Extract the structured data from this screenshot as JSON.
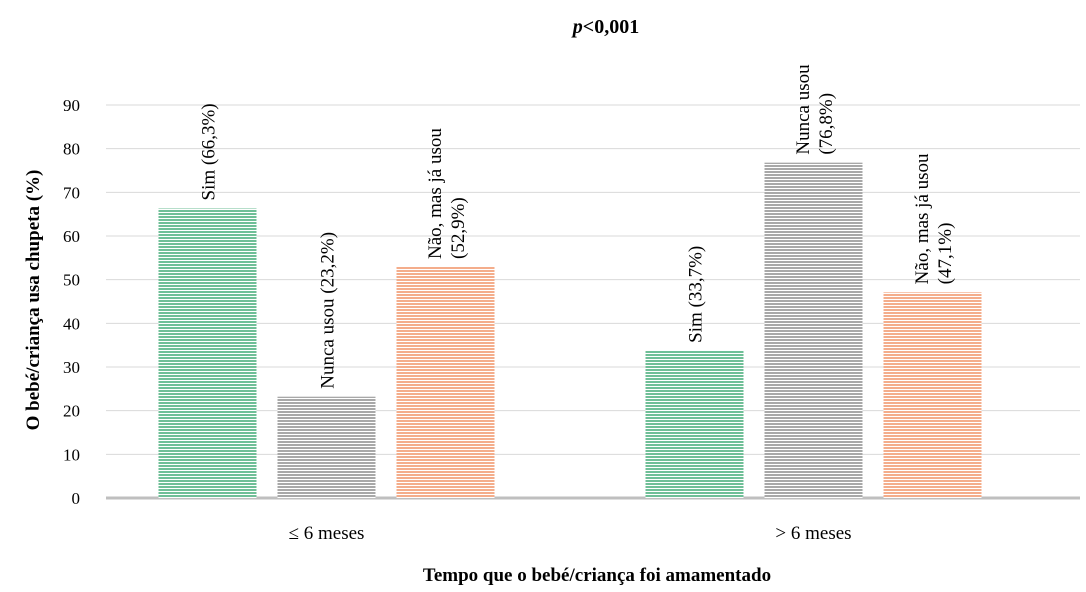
{
  "chart_data": {
    "type": "bar",
    "annotation": {
      "prefix": "p",
      "text": "<0,001"
    },
    "ylabel": "O bebé/criança usa chupeta (%)",
    "xlabel": "Tempo que o bebé/criança foi amamentado",
    "ylim": [
      0,
      90
    ],
    "yticks": [
      "0",
      "10",
      "20",
      "30",
      "40",
      "50",
      "60",
      "70",
      "80",
      "90"
    ],
    "grid": true,
    "categories": [
      "≤ 6 meses",
      "> 6 meses"
    ],
    "series": [
      {
        "name": "Sim",
        "color": "#6fbf97",
        "values": [
          66.3,
          33.7
        ],
        "labels": [
          [
            "Sim (66,3%)"
          ],
          [
            "Sim (33,7%)"
          ]
        ]
      },
      {
        "name": "Nunca usou",
        "color": "#a8a8a8",
        "values": [
          23.2,
          76.8
        ],
        "labels": [
          [
            "Nunca usou (23,2%)"
          ],
          [
            "Nunca usou",
            "(76,8%)"
          ]
        ]
      },
      {
        "name": "Não, mas já usou",
        "color": "#f4ad8b",
        "values": [
          52.9,
          47.1
        ],
        "labels": [
          [
            "Não, mas já usou",
            "(52,9%)"
          ],
          [
            "Não, mas já usou",
            "(47,1%)"
          ]
        ]
      }
    ]
  }
}
